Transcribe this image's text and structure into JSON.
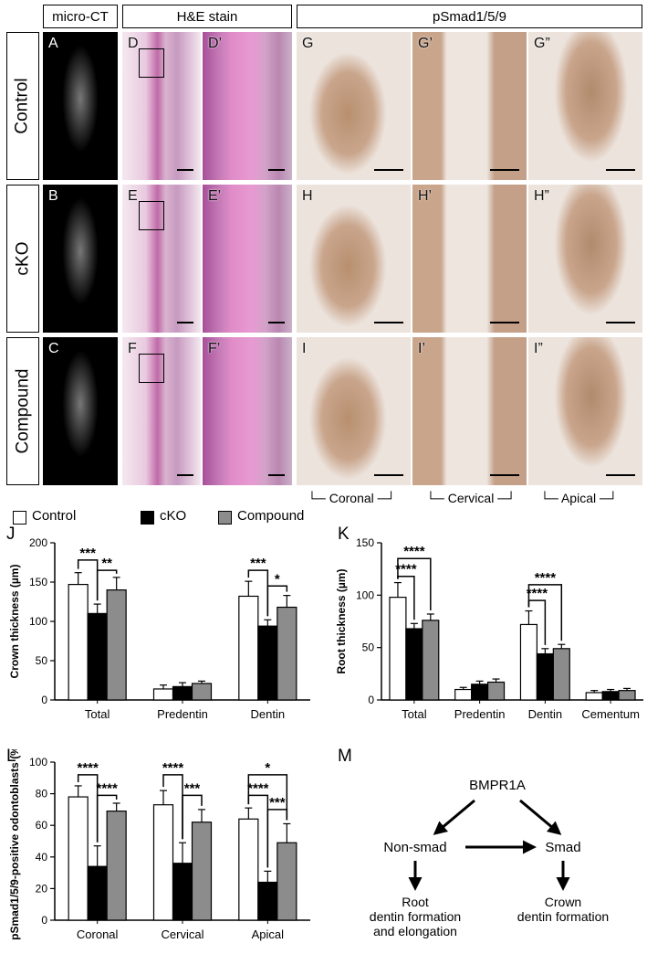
{
  "headers": {
    "microct": "micro-CT",
    "he": "H&E stain",
    "psmad": "pSmad1/5/9"
  },
  "rows": [
    "Control",
    "cKO",
    "Compound"
  ],
  "panels": {
    "microct": [
      "A",
      "B",
      "C"
    ],
    "he": [
      "D",
      "E",
      "F"
    ],
    "he_zoom": [
      "D’",
      "E’",
      "F’"
    ],
    "coronal": [
      "G",
      "H",
      "I"
    ],
    "cervical": [
      "G’",
      "H’",
      "I’"
    ],
    "apical": [
      "G”",
      "H”",
      "I”"
    ]
  },
  "regions": {
    "coronal": "Coronal",
    "cervical": "Cervical",
    "apical": "Apical"
  },
  "legend": [
    "Control",
    "cKO",
    "Compound"
  ],
  "fig_letters": {
    "j": "J",
    "k": "K",
    "l": "L",
    "m": "M"
  },
  "colors": {
    "control": "#ffffff",
    "cko": "#000000",
    "compound": "#8c8c8c",
    "he_pink": "#d98ec4",
    "he_bg": "#f3dbe9",
    "ihc_bg": "#ece3dc",
    "ihc_tissue": "#c9a58c"
  },
  "chart_data": [
    {
      "id": "J",
      "type": "bar",
      "ylabel": "Crown thickness (µm)",
      "categories": [
        "Total",
        "Predentin",
        "Dentin"
      ],
      "ylim": [
        0,
        200
      ],
      "yticks": [
        0,
        50,
        100,
        150,
        200
      ],
      "series": [
        {
          "name": "Control",
          "values": [
            147,
            14,
            132
          ],
          "errors": [
            15,
            5,
            19
          ]
        },
        {
          "name": "cKO",
          "values": [
            110,
            17,
            94
          ],
          "errors": [
            12,
            5,
            8
          ]
        },
        {
          "name": "Compound",
          "values": [
            140,
            21,
            118
          ],
          "errors": [
            16,
            3,
            15
          ]
        }
      ],
      "significance": [
        {
          "cat": 0,
          "from": 0,
          "to": 1,
          "label": "***",
          "y": 178
        },
        {
          "cat": 0,
          "from": 1,
          "to": 2,
          "label": "**",
          "y": 165
        },
        {
          "cat": 2,
          "from": 0,
          "to": 1,
          "label": "***",
          "y": 165
        },
        {
          "cat": 2,
          "from": 1,
          "to": 2,
          "label": "*",
          "y": 145
        }
      ]
    },
    {
      "id": "K",
      "type": "bar",
      "ylabel": "Root thickness (µm)",
      "categories": [
        "Total",
        "Predentin",
        "Dentin",
        "Cementum"
      ],
      "ylim": [
        0,
        150
      ],
      "yticks": [
        0,
        50,
        100,
        150
      ],
      "series": [
        {
          "name": "Control",
          "values": [
            98,
            10,
            72,
            7
          ],
          "errors": [
            14,
            2,
            13,
            2
          ]
        },
        {
          "name": "cKO",
          "values": [
            68,
            15,
            44,
            8
          ],
          "errors": [
            5,
            3,
            5,
            2
          ]
        },
        {
          "name": "Compound",
          "values": [
            76,
            17,
            49,
            9
          ],
          "errors": [
            6,
            3,
            4,
            2
          ]
        }
      ],
      "significance": [
        {
          "cat": 0,
          "from": 0,
          "to": 2,
          "label": "****",
          "y": 135
        },
        {
          "cat": 0,
          "from": 0,
          "to": 1,
          "label": "****",
          "y": 118
        },
        {
          "cat": 2,
          "from": 0,
          "to": 2,
          "label": "****",
          "y": 110
        },
        {
          "cat": 2,
          "from": 0,
          "to": 1,
          "label": "****",
          "y": 95
        }
      ]
    },
    {
      "id": "L",
      "type": "bar",
      "ylabel": "pSmad1/5/9-positive odontoblasts (%)",
      "categories": [
        "Coronal",
        "Cervical",
        "Apical"
      ],
      "ylim": [
        0,
        100
      ],
      "yticks": [
        0,
        20,
        40,
        60,
        80,
        100
      ],
      "series": [
        {
          "name": "Control",
          "values": [
            78,
            73,
            64
          ],
          "errors": [
            7,
            9,
            7
          ]
        },
        {
          "name": "cKO",
          "values": [
            34,
            36,
            24
          ],
          "errors": [
            13,
            13,
            7
          ]
        },
        {
          "name": "Compound",
          "values": [
            69,
            62,
            49
          ],
          "errors": [
            5,
            8,
            12
          ]
        }
      ],
      "significance": [
        {
          "cat": 0,
          "from": 0,
          "to": 1,
          "label": "****",
          "y": 92
        },
        {
          "cat": 0,
          "from": 1,
          "to": 2,
          "label": "****",
          "y": 79
        },
        {
          "cat": 1,
          "from": 0,
          "to": 1,
          "label": "****",
          "y": 92
        },
        {
          "cat": 1,
          "from": 1,
          "to": 2,
          "label": "***",
          "y": 79
        },
        {
          "cat": 2,
          "from": 0,
          "to": 2,
          "label": "*",
          "y": 92
        },
        {
          "cat": 2,
          "from": 0,
          "to": 1,
          "label": "****",
          "y": 79
        },
        {
          "cat": 2,
          "from": 1,
          "to": 2,
          "label": "***",
          "y": 70
        }
      ]
    }
  ],
  "diagram": {
    "top": "BMPR1A",
    "left": "Non-smad",
    "right": "Smad",
    "left_outcome": [
      "Root",
      "dentin formation",
      "and elongation"
    ],
    "right_outcome": [
      "Crown",
      "dentin formation"
    ]
  }
}
